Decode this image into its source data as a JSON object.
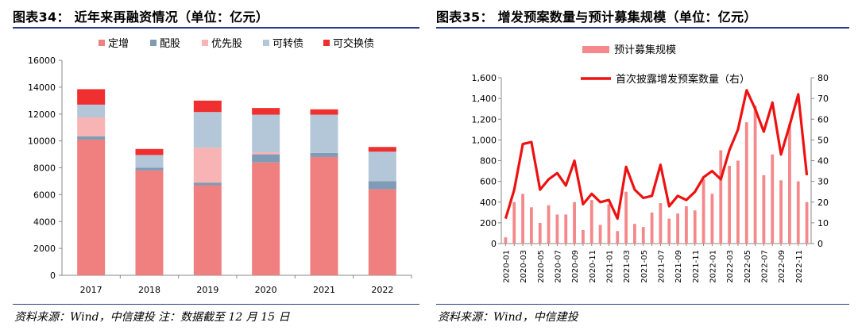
{
  "left": {
    "title": "图表34： 近年来再融资情况（单位：亿元）",
    "source": "资料来源：Wind，中信建投 注：数据截至 12 月 15 日",
    "chart_data": {
      "type": "bar",
      "stacked": true,
      "categories": [
        "2017",
        "2018",
        "2019",
        "2020",
        "2021",
        "2022"
      ],
      "ylim": [
        0,
        16000
      ],
      "yticks": [
        0,
        2000,
        4000,
        6000,
        8000,
        10000,
        12000,
        14000,
        16000
      ],
      "ytick_labels": [
        "0",
        "2000",
        "4000",
        "6000",
        "8000",
        "10000",
        "12000",
        "14000",
        "16000"
      ],
      "legend_position": "top",
      "grid": false,
      "series": [
        {
          "name": "定增",
          "color": "#f08080",
          "values": [
            10100,
            7800,
            6700,
            8400,
            8800,
            6400
          ]
        },
        {
          "name": "配股",
          "color": "#7f9bb5",
          "values": [
            250,
            200,
            200,
            600,
            300,
            600
          ]
        },
        {
          "name": "优先股",
          "color": "#f8b4b4",
          "values": [
            1400,
            0,
            2600,
            150,
            0,
            0
          ]
        },
        {
          "name": "可转债",
          "color": "#b4c7d9",
          "values": [
            950,
            950,
            2650,
            2800,
            2850,
            2200
          ]
        },
        {
          "name": "可交换债",
          "color": "#f03030",
          "values": [
            1150,
            450,
            850,
            500,
            400,
            350
          ]
        }
      ]
    }
  },
  "right": {
    "title": "图表35： 增发预案数量与预计募集规模（单位：亿元）",
    "source": "资料来源：Wind，中信建投",
    "chart_data": {
      "type": "bar+line",
      "legend_position": "top",
      "grid": false,
      "ylim_left": [
        0,
        1600
      ],
      "yticks_left": [
        0,
        200,
        400,
        600,
        800,
        1000,
        1200,
        1400,
        1600
      ],
      "ytick_labels_left": [
        "0",
        "200",
        "400",
        "600",
        "800",
        "1,000",
        "1,200",
        "1,400",
        "1,600"
      ],
      "ylim_right": [
        0,
        80
      ],
      "yticks_right": [
        0,
        10,
        20,
        30,
        40,
        50,
        60,
        70,
        80
      ],
      "ytick_labels_right": [
        "0",
        "10",
        "20",
        "30",
        "40",
        "50",
        "60",
        "70",
        "80"
      ],
      "x": [
        "2020-01",
        "2020-02",
        "2020-03",
        "2020-04",
        "2020-05",
        "2020-06",
        "2020-07",
        "2020-08",
        "2020-09",
        "2020-10",
        "2020-11",
        "2020-12",
        "2021-01",
        "2021-02",
        "2021-03",
        "2021-04",
        "2021-05",
        "2021-06",
        "2021-07",
        "2021-08",
        "2021-09",
        "2021-10",
        "2021-11",
        "2021-12",
        "2022-01",
        "2022-02",
        "2022-03",
        "2022-04",
        "2022-05",
        "2022-06",
        "2022-07",
        "2022-08",
        "2022-09",
        "2022-10",
        "2022-11",
        "2022-12"
      ],
      "xtick_labels": [
        "2020-01",
        "2020-03",
        "2020-05",
        "2020-07",
        "2020-09",
        "2020-11",
        "2021-01",
        "2021-03",
        "2021-05",
        "2021-07",
        "2021-09",
        "2021-11",
        "2022-01",
        "2022-03",
        "2022-05",
        "2022-07",
        "2022-09",
        "2022-11"
      ],
      "series": [
        {
          "name": "预计募集规模",
          "kind": "bar",
          "axis": "left",
          "color": "#f4888a",
          "values": [
            60,
            400,
            480,
            350,
            200,
            370,
            280,
            280,
            400,
            130,
            420,
            180,
            380,
            120,
            500,
            190,
            160,
            300,
            390,
            240,
            290,
            360,
            320,
            620,
            480,
            900,
            750,
            800,
            1170,
            1330,
            660,
            860,
            610,
            1150,
            600,
            400
          ]
        },
        {
          "name": "首次披露增发预案数量（右）",
          "kind": "line",
          "axis": "right",
          "color": "#ee1111",
          "values": [
            12,
            26,
            48,
            49,
            26,
            31,
            34,
            28,
            40,
            19,
            24,
            20,
            21,
            12,
            37,
            26,
            22,
            23,
            38,
            18,
            23,
            21,
            25,
            32,
            35,
            31,
            45,
            55,
            74,
            65,
            54,
            68,
            43,
            57,
            72,
            33
          ]
        }
      ]
    }
  }
}
